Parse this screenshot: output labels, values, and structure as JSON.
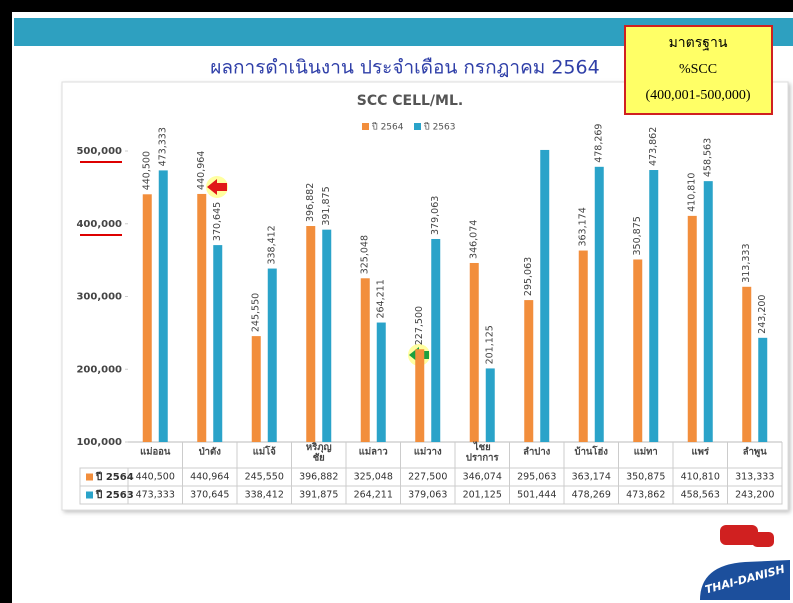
{
  "header": {
    "title": "ผลการดำเนินงาน ประจำเดือน กรกฎาคม 2564"
  },
  "standard_box": {
    "lines": [
      "มาตรฐาน",
      "%SCC",
      "(400,001-500,000)"
    ]
  },
  "logo": {
    "text": "THAI-DANISH"
  },
  "chart_data": {
    "type": "bar",
    "title": "SCC CELL/ML.",
    "categories": [
      "แม่ออน",
      "ป่าตัง",
      "แม่โจ้",
      "หริภุญ\nชัย",
      "แม่ลาว",
      "แม่วาง",
      "ไชย\nปราการ",
      "ลำปาง",
      "บ้านโฮ่ง",
      "แม่ทา",
      "แพร่",
      "ลำพูน"
    ],
    "series": [
      {
        "name": "ปี 2564",
        "color": "#f28e3c",
        "values": [
          440500,
          440964,
          245550,
          396882,
          325048,
          227500,
          346074,
          295063,
          363174,
          350875,
          410810,
          313333
        ],
        "value_labels": [
          "440,500",
          "440,964",
          "245,550",
          "396,882",
          "325,048",
          "227,500",
          "346,074",
          "295,063",
          "363,174",
          "350,875",
          "410,810",
          "313,333"
        ]
      },
      {
        "name": "ปี 2563",
        "color": "#2aa3c9",
        "values": [
          473333,
          370645,
          338412,
          391875,
          264211,
          379063,
          201125,
          501444,
          478269,
          473862,
          458563,
          243200
        ],
        "value_labels": [
          "473,333",
          "370,645",
          "338,412",
          "391,875",
          "264,211",
          "379,063",
          "201,125",
          "501,444",
          "478,269",
          "473,862",
          "458,563",
          "243,200"
        ]
      }
    ],
    "ylim": [
      100000,
      500000
    ],
    "yticks": [
      {
        "value": 100000,
        "label": "100,000"
      },
      {
        "value": 200000,
        "label": "200,000"
      },
      {
        "value": 300000,
        "label": "300,000"
      },
      {
        "value": 400000,
        "label": "400,000"
      },
      {
        "value": 500000,
        "label": "500,000"
      }
    ],
    "legend": "top",
    "grid": false
  }
}
